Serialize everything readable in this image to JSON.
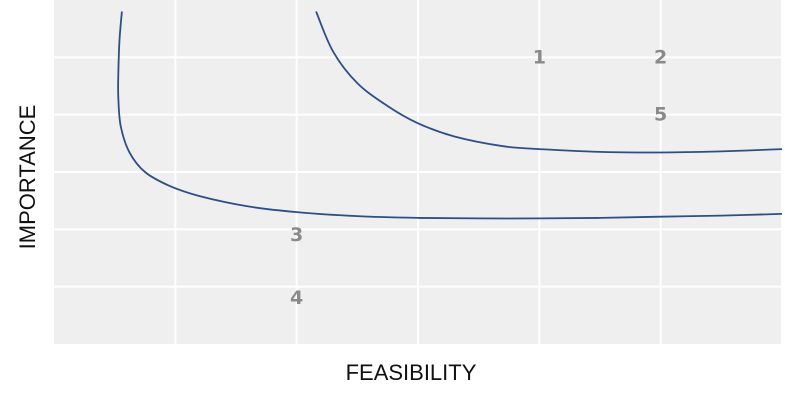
{
  "chart_data": {
    "type": "scatter",
    "title": "",
    "xlabel": "FEASIBILITY",
    "ylabel": "IMPORTANCE",
    "xlim": [
      0,
      6
    ],
    "ylim": [
      0,
      6
    ],
    "x_ticks": [
      1,
      2,
      3,
      4,
      5,
      6
    ],
    "y_ticks": [
      1,
      2,
      3,
      4,
      5
    ],
    "x_tick_labels_shown": false,
    "y_tick_labels_shown": false,
    "grid": true,
    "legend": "none",
    "points": [
      {
        "label": "1",
        "x": 4.0,
        "y": 5.0
      },
      {
        "label": "2",
        "x": 5.0,
        "y": 5.0
      },
      {
        "label": "3",
        "x": 2.0,
        "y": 1.9
      },
      {
        "label": "4",
        "x": 2.0,
        "y": 0.8
      },
      {
        "label": "5",
        "x": 5.0,
        "y": 4.0
      }
    ],
    "curves": [
      {
        "x": [
          0.56,
          0.54,
          0.53,
          0.53,
          0.55,
          0.62,
          0.75,
          0.95,
          1.2,
          1.6,
          2.0,
          2.5,
          3.0,
          3.5,
          4.0,
          4.5,
          5.0,
          5.5,
          6.0
        ],
        "y": [
          5.8,
          5.3,
          4.7,
          4.3,
          3.8,
          3.35,
          3.0,
          2.76,
          2.58,
          2.4,
          2.3,
          2.23,
          2.2,
          2.19,
          2.19,
          2.2,
          2.22,
          2.24,
          2.27
        ]
      },
      {
        "x": [
          2.16,
          2.3,
          2.5,
          2.75,
          3.0,
          3.3,
          3.7,
          4.0,
          4.5,
          5.0,
          5.5,
          6.0
        ],
        "y": [
          5.8,
          5.1,
          4.55,
          4.15,
          3.85,
          3.62,
          3.45,
          3.4,
          3.35,
          3.34,
          3.36,
          3.4
        ]
      }
    ],
    "colors": {
      "plot_background": "#efefef",
      "grid": "#ffffff",
      "curve": "#2e4e87",
      "point_label": "#8a8a8a"
    }
  }
}
